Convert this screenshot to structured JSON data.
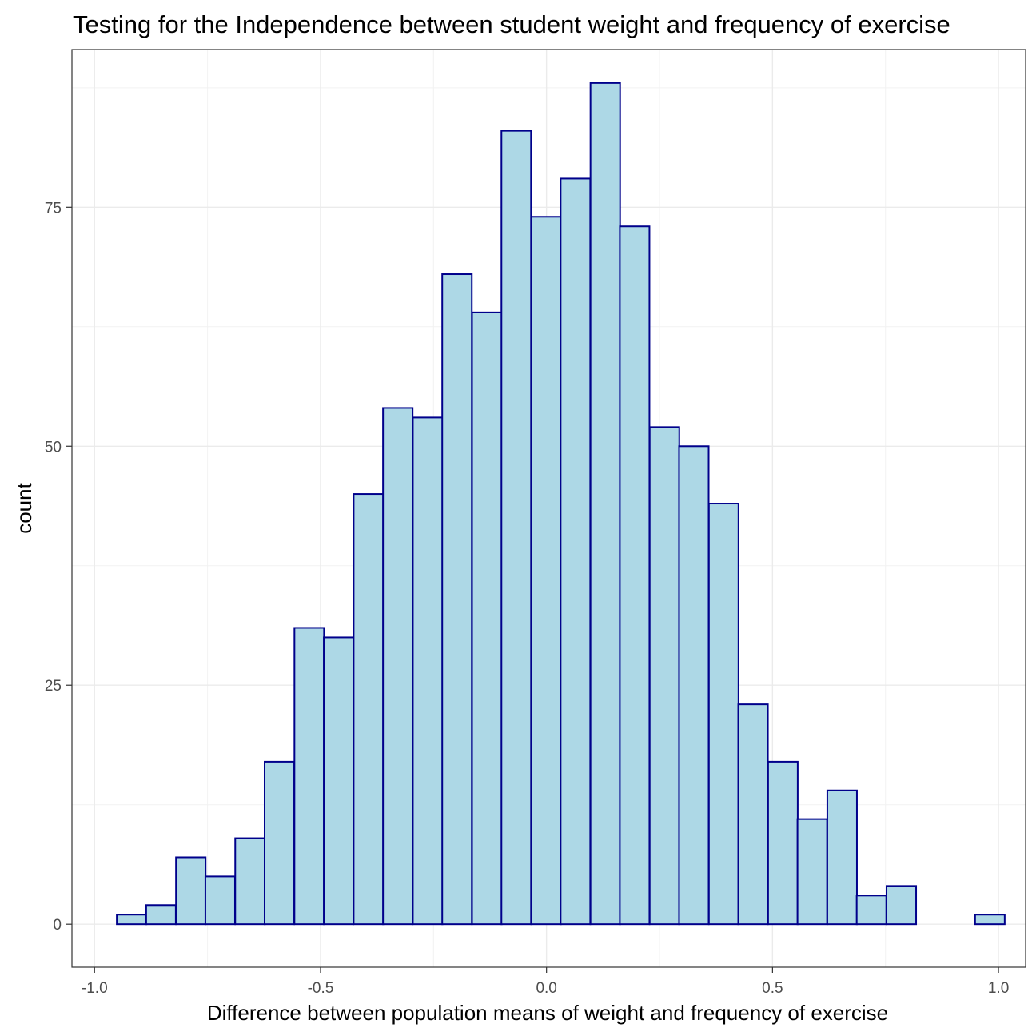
{
  "chart_data": {
    "type": "bar",
    "subtype": "histogram",
    "title": "Testing for the Independence between student weight and frequency of exercise",
    "xlabel": "Difference between  population means of weight and frequency of exercise",
    "ylabel": "count",
    "xlim": [
      -1.05,
      1.06
    ],
    "ylim": [
      -4.5,
      91.5
    ],
    "x_ticks": [
      "-1.0",
      "-0.5",
      "0.0",
      "0.5",
      "1.0"
    ],
    "y_ticks": [
      "0",
      "25",
      "50",
      "75"
    ],
    "bin_width": 0.0655,
    "bins": [
      {
        "x": -0.918,
        "count": 1
      },
      {
        "x": -0.853,
        "count": 2
      },
      {
        "x": -0.787,
        "count": 7
      },
      {
        "x": -0.722,
        "count": 5
      },
      {
        "x": -0.656,
        "count": 9
      },
      {
        "x": -0.591,
        "count": 17
      },
      {
        "x": -0.525,
        "count": 31
      },
      {
        "x": -0.46,
        "count": 30
      },
      {
        "x": -0.394,
        "count": 45
      },
      {
        "x": -0.329,
        "count": 54
      },
      {
        "x": -0.263,
        "count": 53
      },
      {
        "x": -0.198,
        "count": 68
      },
      {
        "x": -0.132,
        "count": 64
      },
      {
        "x": -0.067,
        "count": 83
      },
      {
        "x": -0.001,
        "count": 74
      },
      {
        "x": 0.064,
        "count": 78
      },
      {
        "x": 0.13,
        "count": 88
      },
      {
        "x": 0.195,
        "count": 73
      },
      {
        "x": 0.261,
        "count": 52
      },
      {
        "x": 0.326,
        "count": 50
      },
      {
        "x": 0.392,
        "count": 44
      },
      {
        "x": 0.457,
        "count": 23
      },
      {
        "x": 0.523,
        "count": 17
      },
      {
        "x": 0.588,
        "count": 11
      },
      {
        "x": 0.654,
        "count": 14
      },
      {
        "x": 0.719,
        "count": 3
      },
      {
        "x": 0.785,
        "count": 4
      },
      {
        "x": 0.85,
        "count": 0
      },
      {
        "x": 0.916,
        "count": 0
      },
      {
        "x": 0.981,
        "count": 1
      }
    ],
    "grid": true,
    "colors": {
      "bar_fill": "#add8e6",
      "bar_stroke": "#00008b",
      "grid_major": "#ebebeb",
      "grid_minor": "#f2f2f2",
      "panel_border": "#333333"
    }
  }
}
